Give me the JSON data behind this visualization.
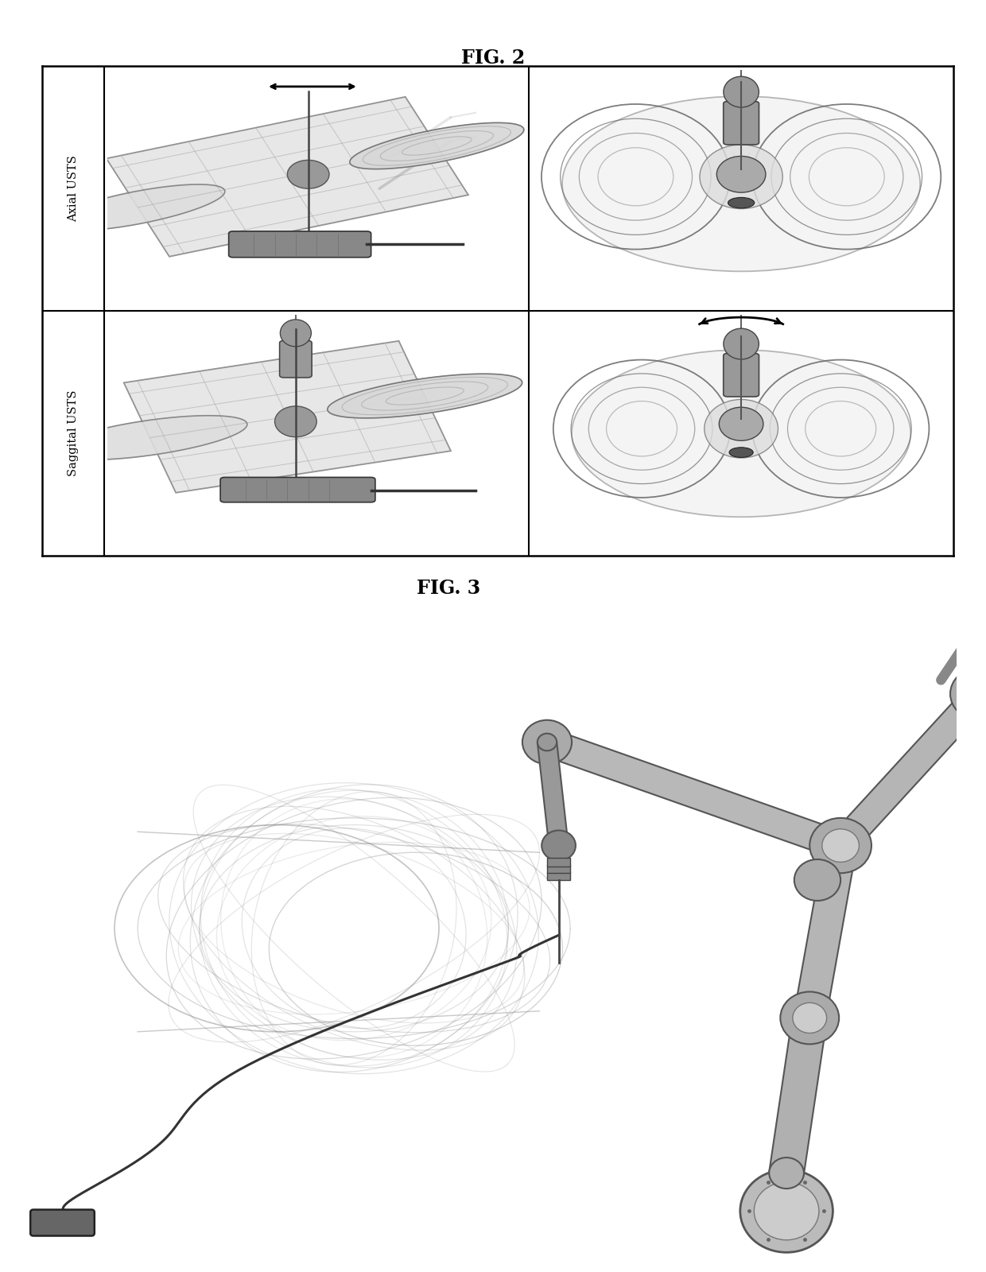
{
  "fig2_title": "FIG. 2",
  "fig3_title": "FIG. 3",
  "label_axial": "Axial USTS",
  "label_saggital": "Saggital USTS",
  "background_color": "#ffffff",
  "text_color": "#000000",
  "fig2_title_fontsize": 17,
  "fig3_title_fontsize": 17,
  "label_fontsize": 10.5,
  "grid_border_lw": 1.5,
  "panel_bg": "#f5f5f5",
  "phantom_color": "#888888",
  "probe_color": "#555555",
  "dark_color": "#222222",
  "light_gray": "#cccccc",
  "mid_gray": "#999999"
}
